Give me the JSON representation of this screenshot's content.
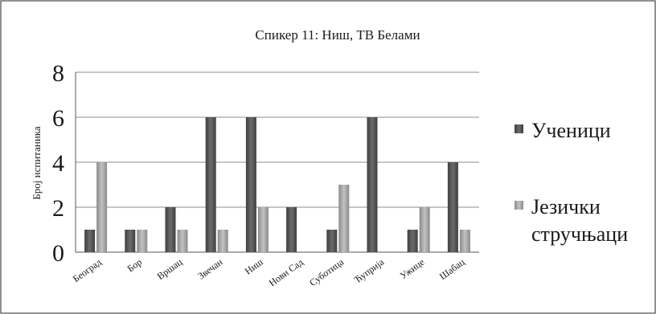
{
  "chart_data": {
    "type": "bar",
    "title": "Спикер 11: Ниш, ТВ Белами",
    "ylabel": "Број испитаника",
    "xlabel": "",
    "ylim": [
      0,
      8
    ],
    "yticks": [
      0,
      2,
      4,
      6,
      8
    ],
    "grid": true,
    "legend_position": "right",
    "categories": [
      "Београд",
      "Бор",
      "Вршац",
      "Звечан",
      "Ниш",
      "Нови Сад",
      "Суботица",
      "Ћуприја",
      "Ужице",
      "Шабац"
    ],
    "series": [
      {
        "name": "Ученици",
        "color": "#5a5a5a",
        "values": [
          1,
          1,
          2,
          6,
          6,
          2,
          1,
          6,
          1,
          4
        ]
      },
      {
        "name": "Језички стручњаци",
        "color": "#a6a6a6",
        "values": [
          4,
          1,
          1,
          1,
          2,
          0,
          3,
          0,
          2,
          1
        ]
      }
    ],
    "legend_lines": [
      [
        "Ученици"
      ],
      [
        "Језички",
        "стручњаци"
      ]
    ]
  }
}
